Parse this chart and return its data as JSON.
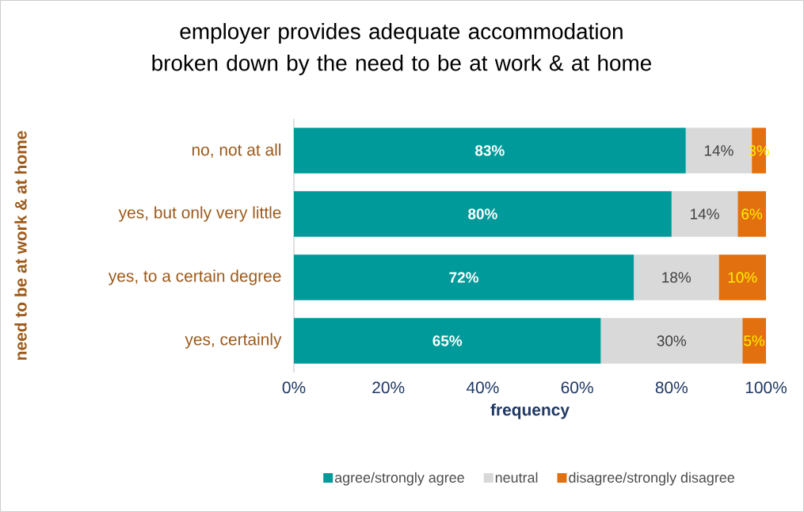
{
  "chart_data": {
    "type": "bar",
    "orientation": "horizontal",
    "stacked": true,
    "title": "employer provides adequate accommodation broken down by the need to be at work & at home",
    "xlabel": "frequency",
    "ylabel": "need to be at work & at home",
    "categories": [
      "no, not at all",
      "yes, but only very little",
      "yes, to a certain degree",
      "yes, certainly"
    ],
    "series": [
      {
        "name": "agree/strongly agree",
        "color": "#009a9a",
        "values": [
          83,
          80,
          72,
          65
        ],
        "value_labels": [
          "83%",
          "80%",
          "72%",
          "65%"
        ]
      },
      {
        "name": "neutral",
        "color": "#d9d9d9",
        "values": [
          14,
          14,
          18,
          30
        ],
        "value_labels": [
          "14%",
          "14%",
          "18%",
          "30%"
        ]
      },
      {
        "name": "disagree/strongly disagree",
        "color": "#e3700e",
        "values": [
          3,
          6,
          10,
          5
        ],
        "value_labels": [
          "3%",
          "6%",
          "10%",
          "5%"
        ]
      }
    ],
    "xlim": [
      0,
      100
    ],
    "xticks": [
      {
        "value": 0,
        "label": "0%"
      },
      {
        "value": 20,
        "label": "20%"
      },
      {
        "value": 40,
        "label": "40%"
      },
      {
        "value": 60,
        "label": "60%"
      },
      {
        "value": 80,
        "label": "80%"
      },
      {
        "value": 100,
        "label": "100%"
      }
    ],
    "grid": false,
    "legend": "bottom"
  }
}
